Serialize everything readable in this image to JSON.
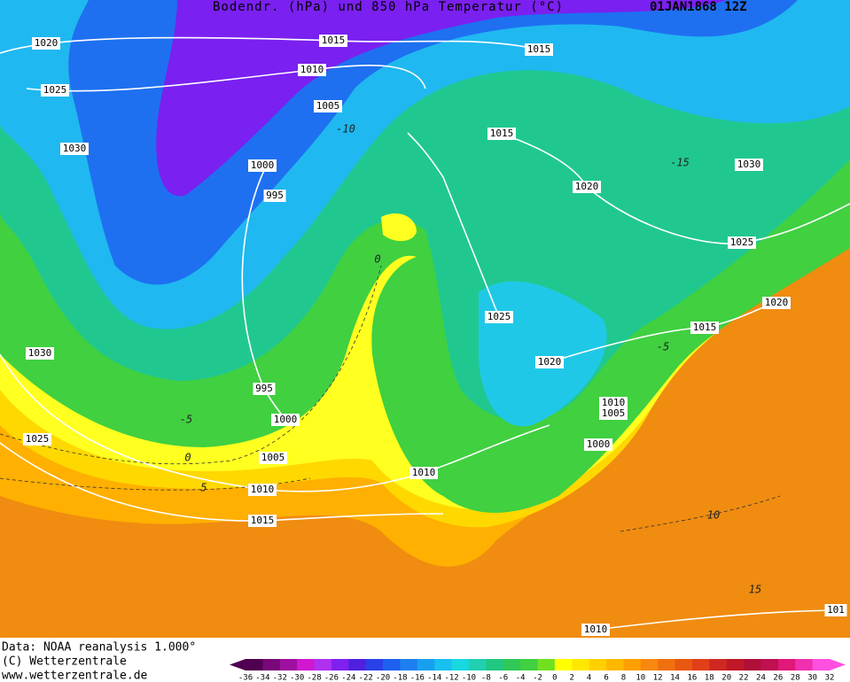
{
  "header": {
    "title": "Bodendr. (hPa) und 850 hPa Temperatur (°C)",
    "date": "01JAN1868 12Z"
  },
  "isobar_labels": [
    "1020",
    "1015",
    "1010",
    "1005",
    "1015",
    "1025",
    "1030",
    "1000",
    "995",
    "1015",
    "1020",
    "1030",
    "1025",
    "1020",
    "1015",
    "1030",
    "1025",
    "1025",
    "1020",
    "995",
    "1010",
    "1005",
    "1000",
    "1000",
    "1005",
    "1010",
    "1010",
    "1015",
    "1010",
    "101"
  ],
  "temperature_labels": [
    "-10",
    "-15",
    "0",
    "-5",
    "-5",
    "0",
    "5",
    "10",
    "15"
  ],
  "footer": {
    "source": "Data: NOAA reanalysis 1.000°",
    "copyright": "(C) Wetterzentrale",
    "url": "www.wetterzentrale.de"
  },
  "colorbar": {
    "ticks": [
      -36,
      -34,
      -32,
      -30,
      -28,
      -26,
      -24,
      -22,
      -20,
      -18,
      -16,
      -14,
      -12,
      -10,
      -8,
      -6,
      -4,
      -2,
      0,
      2,
      4,
      6,
      8,
      10,
      12,
      14,
      16,
      18,
      20,
      22,
      24,
      26,
      28,
      30,
      32
    ],
    "colors": [
      "#500050",
      "#780878",
      "#a010a0",
      "#d018d0",
      "#b030f0",
      "#8020f0",
      "#5020e0",
      "#2a40e8",
      "#1e60f0",
      "#1e80f0",
      "#18a0f0",
      "#18c0f0",
      "#18d8e0",
      "#20d0b0",
      "#20c880",
      "#30c858",
      "#40d040",
      "#70e020",
      "#ffff00",
      "#ffe800",
      "#ffd000",
      "#ffb800",
      "#ffa000",
      "#f88810",
      "#f07010",
      "#e85810",
      "#e04018",
      "#d02820",
      "#c01828",
      "#b01038",
      "#c01050",
      "#e01878",
      "#f030b0",
      "#ff50e0"
    ]
  }
}
